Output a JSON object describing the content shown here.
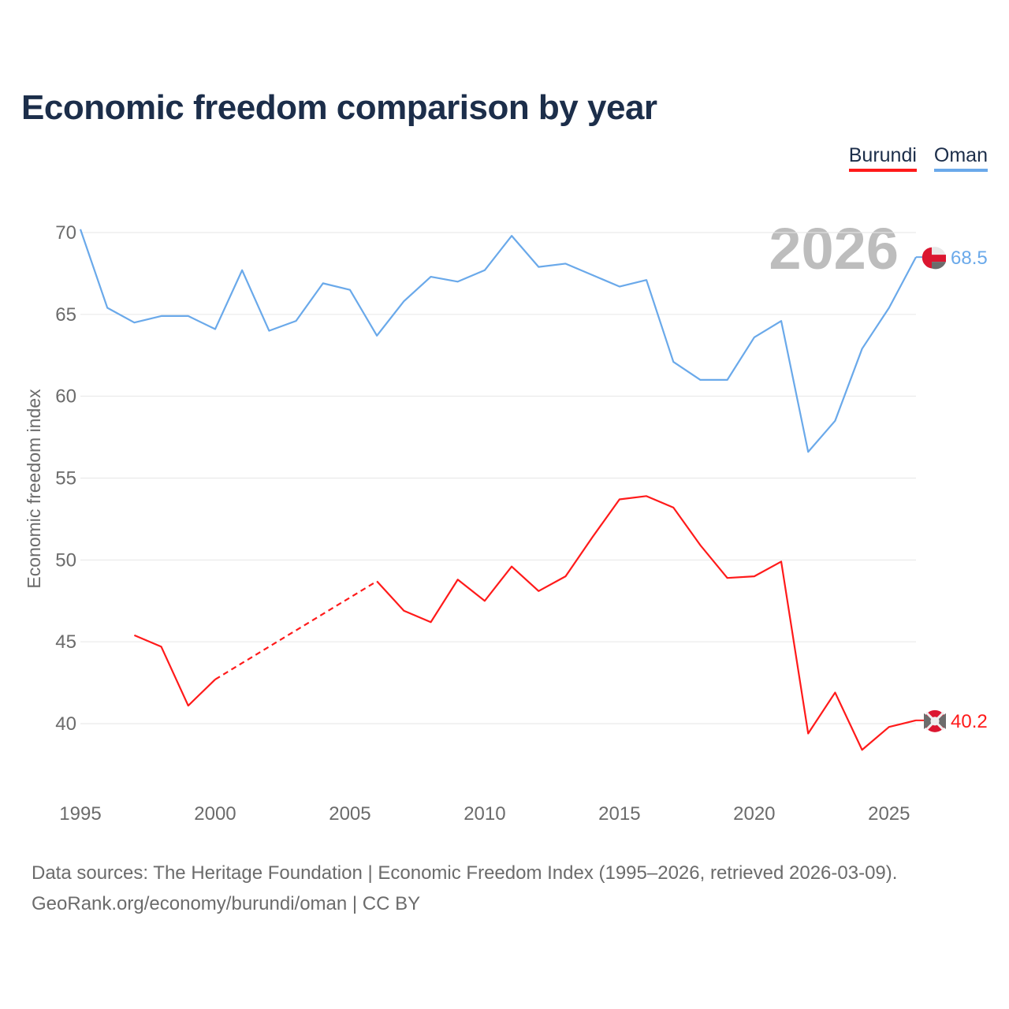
{
  "title": "Economic freedom comparison by year",
  "legend": [
    {
      "label": "Burundi",
      "color": "#ff1a1a"
    },
    {
      "label": "Oman",
      "color": "#6aa9ea"
    }
  ],
  "year_watermark": "2026",
  "source_line1": "Data sources: The Heritage Foundation | Economic Freedom Index (1995–2026, retrieved 2026-03-09).",
  "source_line2": "GeoRank.org/economy/burundi/oman | CC BY",
  "chart_data": {
    "type": "line",
    "title": "Economic freedom comparison by year",
    "xlabel": "",
    "ylabel": "Economic freedom index",
    "xlim": [
      1995,
      2026
    ],
    "ylim": [
      35,
      70
    ],
    "xticks": [
      "1995",
      "2000",
      "2005",
      "2010",
      "2015",
      "2020",
      "2025"
    ],
    "yticks": [
      "40",
      "45",
      "50",
      "55",
      "60",
      "65",
      "70"
    ],
    "grid": true,
    "legend_position": "top-right",
    "series": [
      {
        "name": "Oman",
        "color": "#6aa9ea",
        "end_label": "68.5",
        "x": [
          1995,
          1996,
          1997,
          1998,
          1999,
          2000,
          2001,
          2002,
          2003,
          2004,
          2005,
          2006,
          2007,
          2008,
          2009,
          2010,
          2011,
          2012,
          2013,
          2014,
          2015,
          2016,
          2017,
          2018,
          2019,
          2020,
          2021,
          2022,
          2023,
          2024,
          2025,
          2026
        ],
        "y": [
          70.2,
          65.4,
          64.5,
          64.9,
          64.9,
          64.1,
          67.7,
          64.0,
          64.6,
          66.9,
          66.5,
          63.7,
          65.8,
          67.3,
          67.0,
          67.7,
          69.8,
          67.9,
          68.1,
          67.4,
          66.7,
          67.1,
          62.1,
          61.0,
          61.0,
          63.6,
          64.6,
          56.6,
          58.5,
          62.9,
          65.4,
          68.5
        ]
      },
      {
        "name": "Burundi",
        "color": "#ff1a1a",
        "end_label": "40.2",
        "gap_dashed": [
          2000,
          2006
        ],
        "x": [
          1997,
          1998,
          1999,
          2000,
          2006,
          2007,
          2008,
          2009,
          2010,
          2011,
          2012,
          2013,
          2014,
          2015,
          2016,
          2017,
          2018,
          2019,
          2020,
          2021,
          2022,
          2023,
          2024,
          2025,
          2026
        ],
        "y": [
          45.4,
          44.7,
          41.1,
          42.7,
          48.7,
          46.9,
          46.2,
          48.8,
          47.5,
          49.6,
          48.1,
          49.0,
          51.4,
          53.7,
          53.9,
          53.2,
          50.9,
          48.9,
          49.0,
          49.9,
          39.4,
          41.9,
          38.4,
          39.8,
          40.2
        ]
      }
    ]
  }
}
